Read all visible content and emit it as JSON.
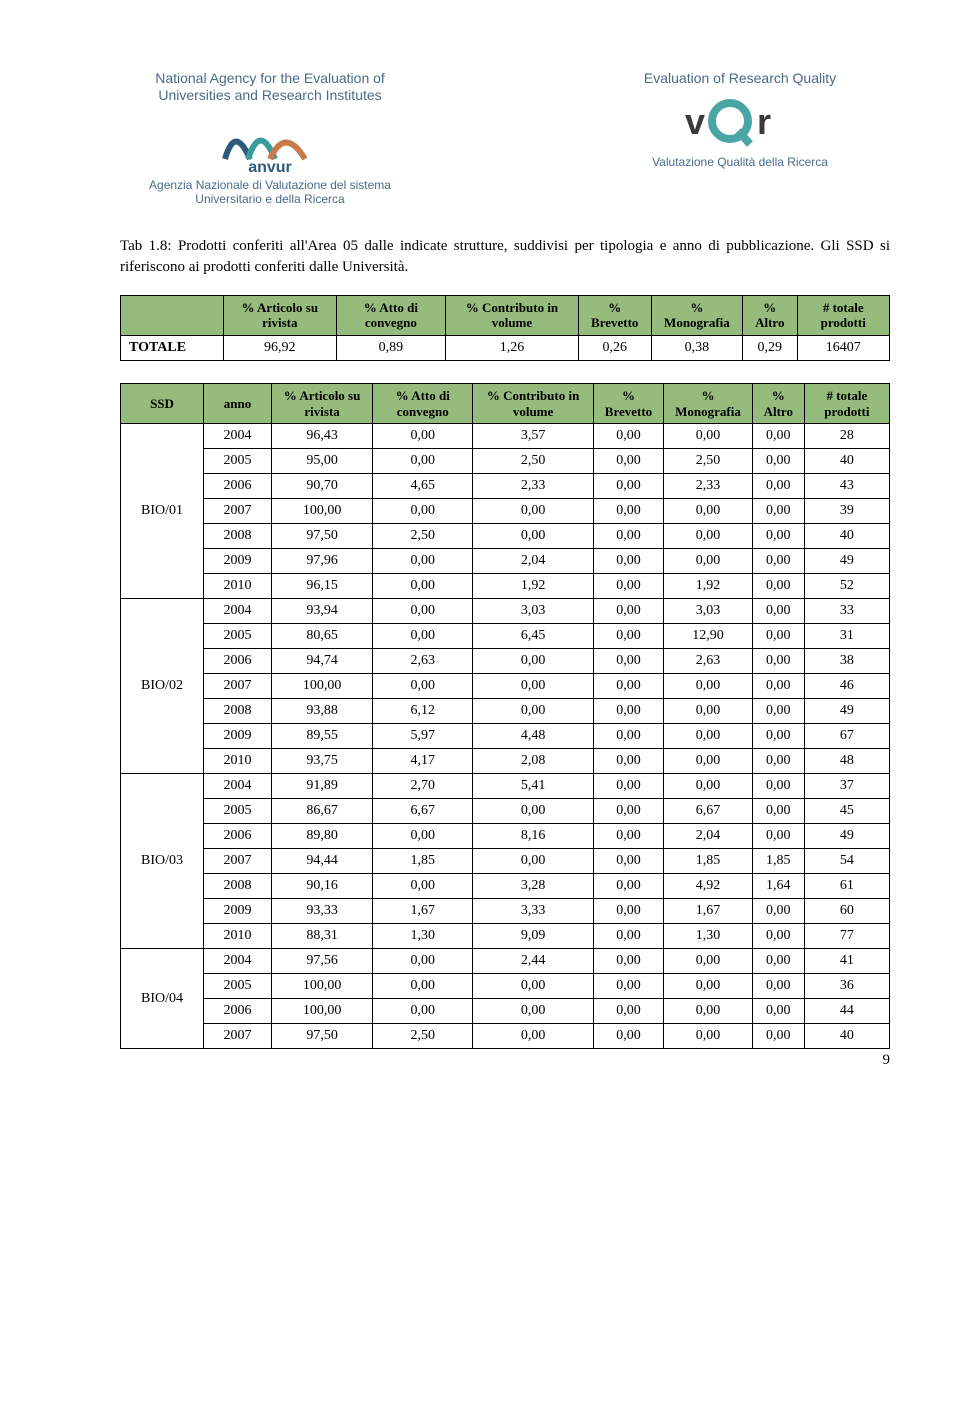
{
  "header": {
    "left_title": "National Agency for the Evaluation of Universities and Research Institutes",
    "left_sub": "Agenzia Nazionale di Valutazione del sistema Universitario e della Ricerca",
    "right_title": "Evaluation of Research Quality",
    "right_sub": "Valutazione Qualità della Ricerca",
    "anvur_text": "anvur",
    "vqr_text": "vQr"
  },
  "caption": "Tab 1.8: Prodotti conferiti all'Area 05 dalle indicate strutture, suddivisi per tipologia e anno di pubblicazione. Gli SSD si riferiscono ai prodotti conferiti dalle Università.",
  "table1": {
    "columns": [
      "",
      "% Articolo su rivista",
      "% Atto di convegno",
      "% Contributo in volume",
      "% Brevetto",
      "% Monografia",
      "% Altro",
      "# totale prodotti"
    ],
    "row_label": "TOTALE",
    "values": [
      "96,92",
      "0,89",
      "1,26",
      "0,26",
      "0,38",
      "0,29",
      "16407"
    ]
  },
  "table2": {
    "columns": [
      "SSD",
      "anno",
      "% Articolo su rivista",
      "% Atto di convegno",
      "% Contributo in volume",
      "% Brevetto",
      "% Monografia",
      "% Altro",
      "# totale prodotti"
    ],
    "groups": [
      {
        "ssd": "BIO/01",
        "rows": [
          [
            "2004",
            "96,43",
            "0,00",
            "3,57",
            "0,00",
            "0,00",
            "0,00",
            "28"
          ],
          [
            "2005",
            "95,00",
            "0,00",
            "2,50",
            "0,00",
            "2,50",
            "0,00",
            "40"
          ],
          [
            "2006",
            "90,70",
            "4,65",
            "2,33",
            "0,00",
            "2,33",
            "0,00",
            "43"
          ],
          [
            "2007",
            "100,00",
            "0,00",
            "0,00",
            "0,00",
            "0,00",
            "0,00",
            "39"
          ],
          [
            "2008",
            "97,50",
            "2,50",
            "0,00",
            "0,00",
            "0,00",
            "0,00",
            "40"
          ],
          [
            "2009",
            "97,96",
            "0,00",
            "2,04",
            "0,00",
            "0,00",
            "0,00",
            "49"
          ],
          [
            "2010",
            "96,15",
            "0,00",
            "1,92",
            "0,00",
            "1,92",
            "0,00",
            "52"
          ]
        ]
      },
      {
        "ssd": "BIO/02",
        "rows": [
          [
            "2004",
            "93,94",
            "0,00",
            "3,03",
            "0,00",
            "3,03",
            "0,00",
            "33"
          ],
          [
            "2005",
            "80,65",
            "0,00",
            "6,45",
            "0,00",
            "12,90",
            "0,00",
            "31"
          ],
          [
            "2006",
            "94,74",
            "2,63",
            "0,00",
            "0,00",
            "2,63",
            "0,00",
            "38"
          ],
          [
            "2007",
            "100,00",
            "0,00",
            "0,00",
            "0,00",
            "0,00",
            "0,00",
            "46"
          ],
          [
            "2008",
            "93,88",
            "6,12",
            "0,00",
            "0,00",
            "0,00",
            "0,00",
            "49"
          ],
          [
            "2009",
            "89,55",
            "5,97",
            "4,48",
            "0,00",
            "0,00",
            "0,00",
            "67"
          ],
          [
            "2010",
            "93,75",
            "4,17",
            "2,08",
            "0,00",
            "0,00",
            "0,00",
            "48"
          ]
        ]
      },
      {
        "ssd": "BIO/03",
        "rows": [
          [
            "2004",
            "91,89",
            "2,70",
            "5,41",
            "0,00",
            "0,00",
            "0,00",
            "37"
          ],
          [
            "2005",
            "86,67",
            "6,67",
            "0,00",
            "0,00",
            "6,67",
            "0,00",
            "45"
          ],
          [
            "2006",
            "89,80",
            "0,00",
            "8,16",
            "0,00",
            "2,04",
            "0,00",
            "49"
          ],
          [
            "2007",
            "94,44",
            "1,85",
            "0,00",
            "0,00",
            "1,85",
            "1,85",
            "54"
          ],
          [
            "2008",
            "90,16",
            "0,00",
            "3,28",
            "0,00",
            "4,92",
            "1,64",
            "61"
          ],
          [
            "2009",
            "93,33",
            "1,67",
            "3,33",
            "0,00",
            "1,67",
            "0,00",
            "60"
          ],
          [
            "2010",
            "88,31",
            "1,30",
            "9,09",
            "0,00",
            "1,30",
            "0,00",
            "77"
          ]
        ]
      },
      {
        "ssd": "BIO/04",
        "rows": [
          [
            "2004",
            "97,56",
            "0,00",
            "2,44",
            "0,00",
            "0,00",
            "0,00",
            "41"
          ],
          [
            "2005",
            "100,00",
            "0,00",
            "0,00",
            "0,00",
            "0,00",
            "0,00",
            "36"
          ],
          [
            "2006",
            "100,00",
            "0,00",
            "0,00",
            "0,00",
            "0,00",
            "0,00",
            "44"
          ],
          [
            "2007",
            "97,50",
            "2,50",
            "0,00",
            "0,00",
            "0,00",
            "0,00",
            "40"
          ]
        ]
      }
    ]
  },
  "page_number": "9",
  "colors": {
    "header_text": "#4a6a8a",
    "th_bg": "#95bb7d",
    "anvur_blue": "#2e5b7b",
    "anvur_teal": "#3a9b9b",
    "vqr_dark": "#3a3a3a",
    "vqr_teal": "#4aa5a5"
  }
}
